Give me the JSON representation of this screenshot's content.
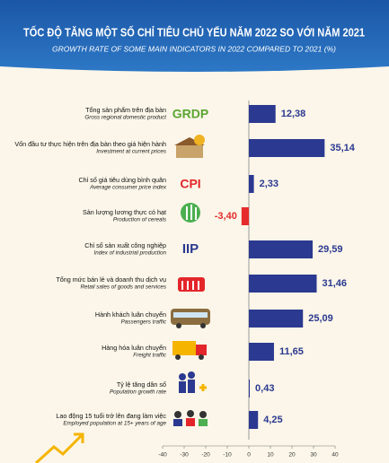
{
  "chart_data": {
    "type": "bar",
    "orientation": "horizontal",
    "title": "TỐC ĐỘ TĂNG MỘT SỐ CHỈ TIÊU CHỦ YẾU NĂM 2022 SO VỚI NĂM 2021",
    "subtitle": "GROWTH RATE OF SOME MAIN INDICATORS IN 2022 COMPARED TO 2021 (%)",
    "categories": [
      "Tổng sản phẩm trên địa bàn",
      "Vốn đầu tư thực hiện trên địa bàn theo giá hiện hành",
      "Chỉ số giá tiêu dùng bình quân",
      "Sản lượng lương thực có hạt",
      "Chỉ số sản xuất công nghiệp",
      "Tổng mức bán lẻ và doanh thu dịch vụ",
      "Hành khách luân chuyển",
      "Hàng hóa luân chuyển",
      "Tỷ lệ tăng dân số",
      "Lao động 15 tuổi trở lên đang làm việc"
    ],
    "categories_en": [
      "Gross regional domestic product",
      "Investment at current prices",
      "Average consumer price index",
      "Production of cereals",
      "Index of industrial production",
      "Retail sales of goods and services",
      "Passengers traffic",
      "Freight traffic",
      "Population growth rate",
      "Employed population at 15+ years of age"
    ],
    "values": [
      12.38,
      35.14,
      2.33,
      -3.4,
      29.59,
      31.46,
      25.09,
      11.65,
      0.43,
      4.25
    ],
    "value_labels": [
      "12,38",
      "35,14",
      "2,33",
      "-3,40",
      "29,59",
      "31,46",
      "25,09",
      "11,65",
      "0,43",
      "4,25"
    ],
    "color": "#2b3990",
    "negative_color": "#e52b2b",
    "xlim": [
      -40,
      40
    ],
    "xticks": [
      -40,
      -30,
      -20,
      -10,
      0,
      10,
      20,
      30,
      40
    ]
  },
  "icon_texts": [
    "GRDP",
    "CPI",
    "IIP"
  ]
}
